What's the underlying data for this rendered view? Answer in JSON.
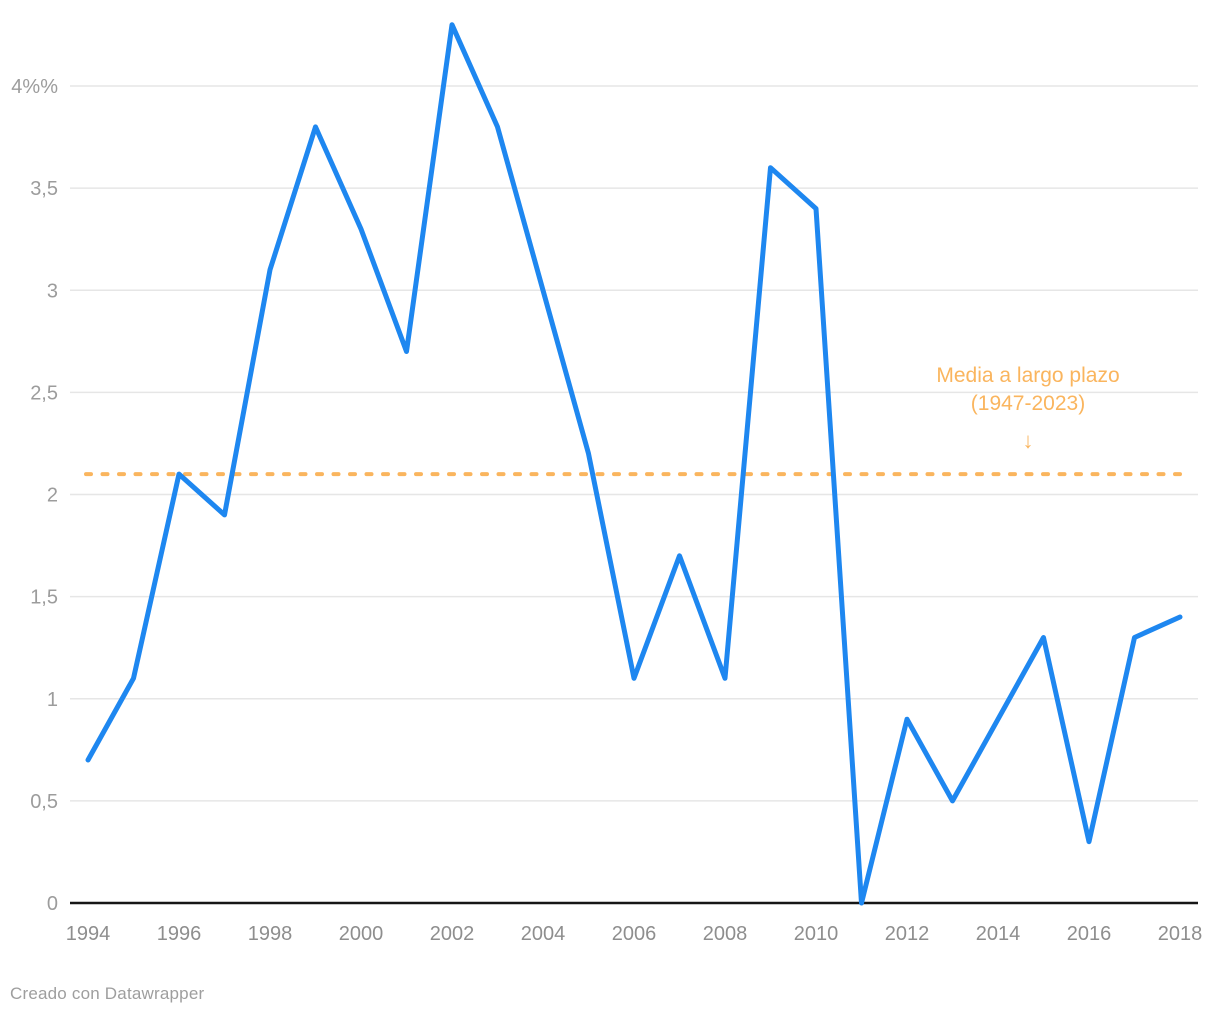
{
  "chart_data": {
    "type": "line",
    "title": "",
    "x": [
      1994,
      1995,
      1996,
      1997,
      1998,
      1999,
      2000,
      2001,
      2002,
      2003,
      2004,
      2005,
      2006,
      2007,
      2008,
      2009,
      2010,
      2011,
      2012,
      2013,
      2014,
      2015,
      2016,
      2017,
      2018
    ],
    "values": [
      0.7,
      1.1,
      2.1,
      1.9,
      3.1,
      3.8,
      3.3,
      2.7,
      4.3,
      3.8,
      3.0,
      2.2,
      1.1,
      1.7,
      1.1,
      3.6,
      3.4,
      0.0,
      0.9,
      0.5,
      0.9,
      1.3,
      0.3,
      1.3,
      1.4
    ],
    "ylim": [
      0,
      4.35
    ],
    "grid": true,
    "legend_position": "none",
    "y_ticks": [
      {
        "value": 0,
        "label": "0"
      },
      {
        "value": 0.5,
        "label": "0,5"
      },
      {
        "value": 1,
        "label": "1"
      },
      {
        "value": 1.5,
        "label": "1,5"
      },
      {
        "value": 2,
        "label": "2"
      },
      {
        "value": 2.5,
        "label": "2,5"
      },
      {
        "value": 3,
        "label": "3"
      },
      {
        "value": 3.5,
        "label": "3,5"
      },
      {
        "value": 4,
        "label": "4%%"
      }
    ],
    "x_ticks": [
      {
        "value": 1994,
        "label": "1994"
      },
      {
        "value": 1996,
        "label": "1996"
      },
      {
        "value": 1998,
        "label": "1998"
      },
      {
        "value": 2000,
        "label": "2000"
      },
      {
        "value": 2002,
        "label": "2002"
      },
      {
        "value": 2004,
        "label": "2004"
      },
      {
        "value": 2006,
        "label": "2006"
      },
      {
        "value": 2008,
        "label": "2008"
      },
      {
        "value": 2010,
        "label": "2010"
      },
      {
        "value": 2012,
        "label": "2012"
      },
      {
        "value": 2014,
        "label": "2014"
      },
      {
        "value": 2016,
        "label": "2016"
      },
      {
        "value": 2018,
        "label": "2018"
      }
    ],
    "reference_line": {
      "value": 2.1,
      "annotation_line1": "Media a largo plazo",
      "annotation_line2": "(1947-2023)",
      "arrow_glyph": "↓"
    },
    "colors": {
      "series_line": "#1E87F0",
      "reference": "#FAB55E",
      "grid": "#E6E6E6",
      "axis_baseline": "#161616",
      "y_tick_text": "#9C9C9C",
      "x_tick_text": "#8E8E8E"
    }
  },
  "footer": {
    "credit": "Creado con Datawrapper"
  }
}
